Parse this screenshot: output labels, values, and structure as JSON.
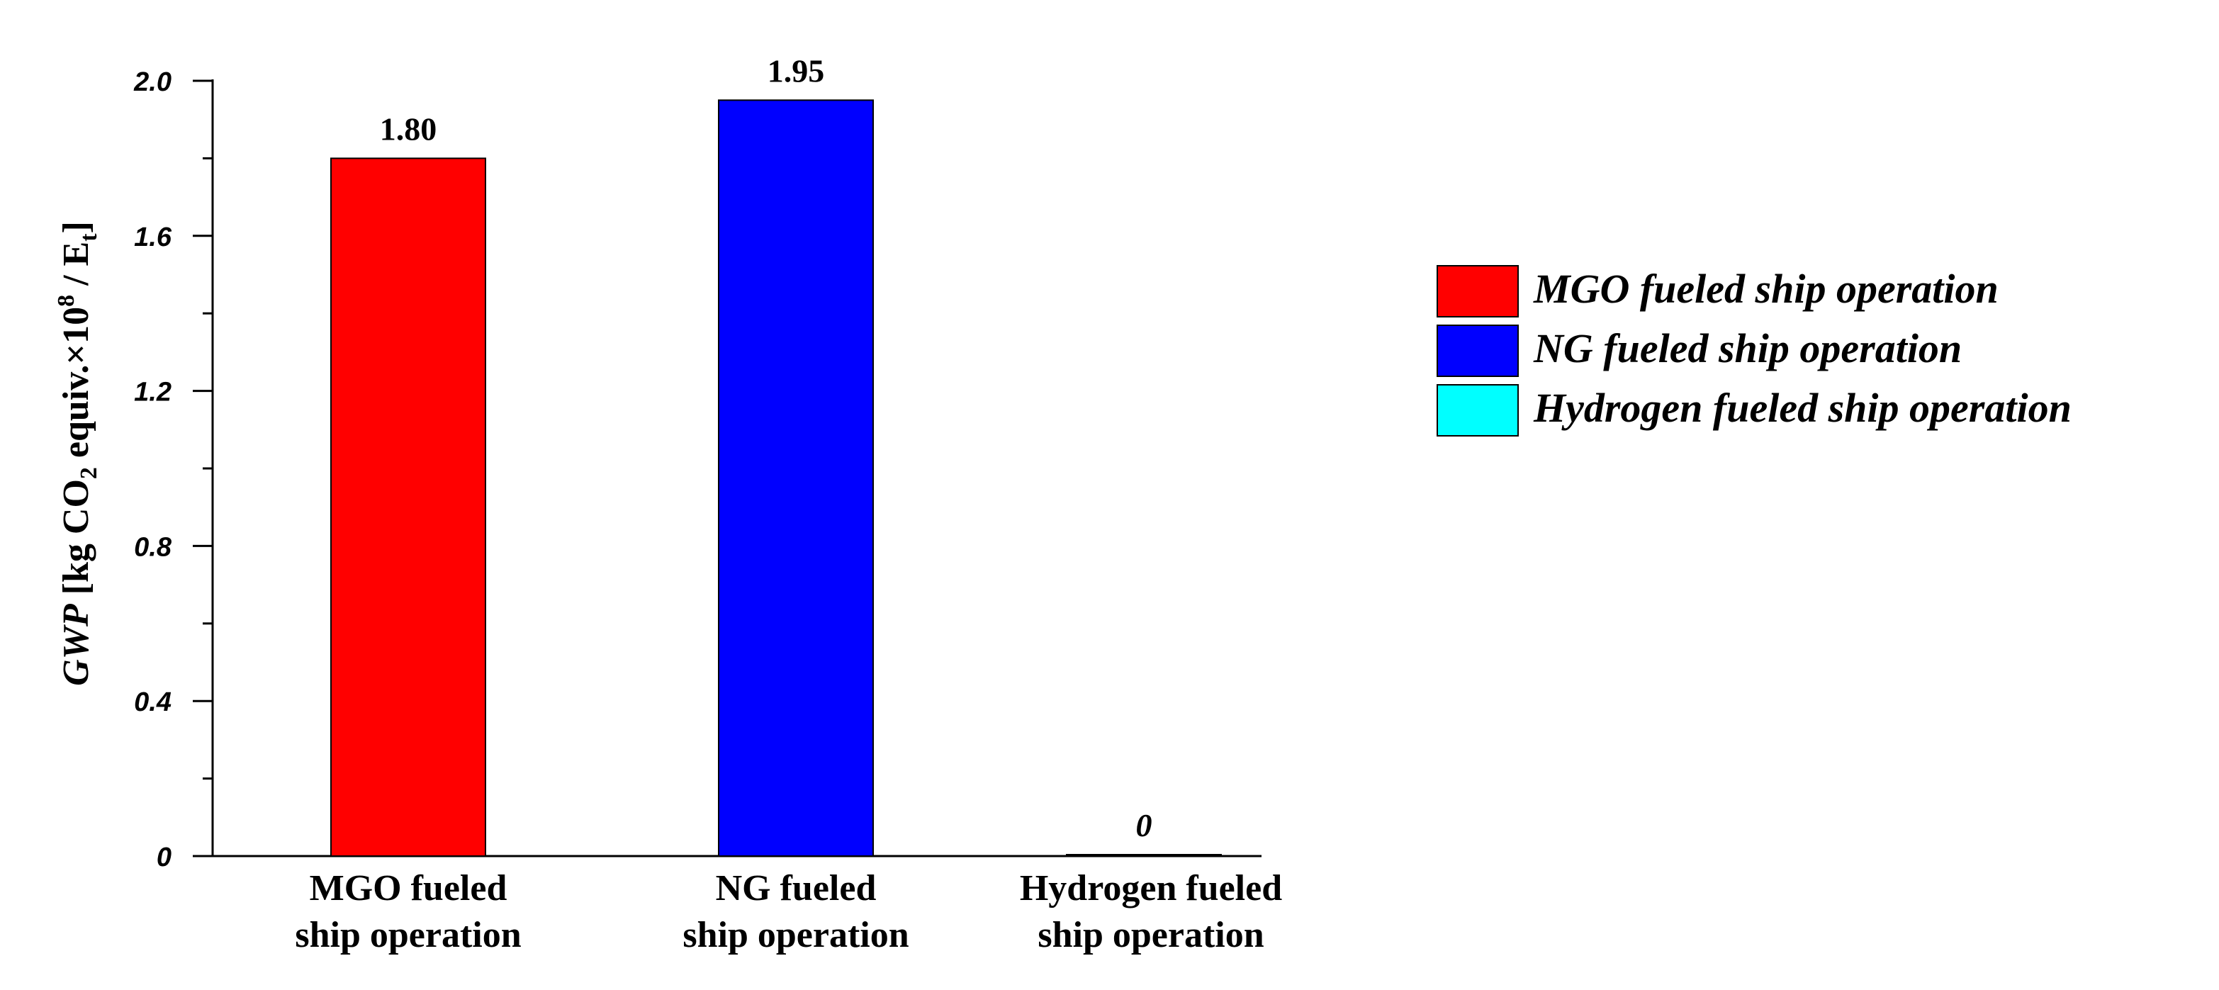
{
  "chart_data": {
    "type": "bar",
    "categories": [
      [
        "MGO fueled",
        "ship operation"
      ],
      [
        "NG fueled",
        "ship operation"
      ],
      [
        "Hydrogen fueled",
        "ship operation"
      ]
    ],
    "values": [
      1.8,
      1.95,
      0
    ],
    "value_labels": [
      "1.80",
      "1.95",
      "0"
    ],
    "colors": [
      "#ff0000",
      "#0000ff",
      "#00ffff"
    ],
    "ylim": [
      0,
      2.0
    ],
    "yticks": [
      "0",
      "0.4",
      "0.8",
      "1.2",
      "1.6",
      "2.0"
    ],
    "ylabel": {
      "var": "GWP",
      "pre": " [kg CO",
      "sub": "2",
      "mid": " equiv.×10",
      "sup": "8",
      "post": " / E",
      "sub2": "t",
      "end": "]"
    },
    "legend": {
      "position": "right",
      "entries": [
        {
          "label": "MGO fueled ship operation",
          "color": "#ff0000"
        },
        {
          "label": "NG fueled ship operation",
          "color": "#0000ff"
        },
        {
          "label": "Hydrogen fueled ship operation",
          "color": "#00ffff"
        }
      ]
    },
    "grid": false
  }
}
